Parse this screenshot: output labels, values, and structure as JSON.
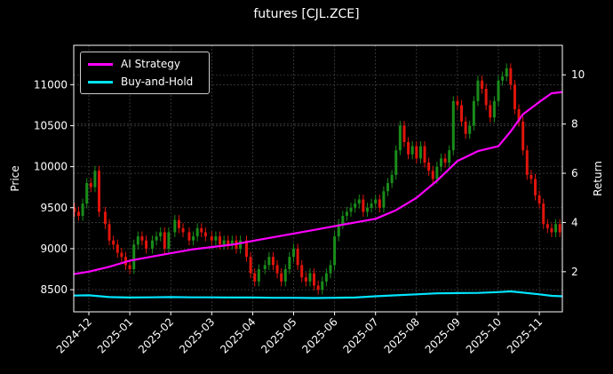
{
  "chart_data": {
    "type": "line",
    "title": "futures [CJL.ZCE]",
    "xlabel": "",
    "ylabel": "Price",
    "ylabel_right": "Return",
    "x_tick_labels": [
      "2024-12",
      "2025-01",
      "2025-02",
      "2025-03",
      "2025-04",
      "2025-05",
      "2025-06",
      "2025-07",
      "2025-08",
      "2025-09",
      "2025-10",
      "2025-11"
    ],
    "y_ticks_left": [
      8500,
      9000,
      9500,
      10000,
      10500,
      11000
    ],
    "y_ticks_right": [
      2,
      4,
      6,
      8,
      10
    ],
    "ylim_left": [
      8230,
      11480
    ],
    "ylim_right": [
      0.37,
      11.2
    ],
    "grid": true,
    "legend_position": "upper left",
    "legend": [
      "AI Strategy",
      "Buy-and-Hold"
    ],
    "colors": {
      "ai_strategy": "#ff00ff",
      "buy_and_hold": "#00e5ff",
      "up": "#1a8c1a",
      "down": "#e0150c",
      "background": "#000000",
      "axes": "#ffffff",
      "grid": "#555555"
    },
    "series": [
      {
        "name": "AI Strategy",
        "axis": "right",
        "x_month_frac": [
          -0.4,
          0,
          0.5,
          1,
          1.5,
          2,
          2.5,
          3,
          3.5,
          4,
          4.5,
          5,
          5.5,
          6,
          6.5,
          7,
          7.5,
          8,
          8.5,
          9,
          9.5,
          10,
          10.3,
          10.6,
          11,
          11.3,
          11.6
        ],
        "values": [
          1.9,
          2.0,
          2.2,
          2.45,
          2.6,
          2.75,
          2.9,
          3.0,
          3.1,
          3.25,
          3.4,
          3.55,
          3.7,
          3.85,
          4.0,
          4.15,
          4.5,
          5.0,
          5.7,
          6.5,
          6.9,
          7.1,
          7.7,
          8.4,
          8.9,
          9.25,
          9.3
        ]
      },
      {
        "name": "Buy-and-Hold",
        "axis": "right",
        "x_month_frac": [
          -0.4,
          0,
          0.5,
          1,
          1.5,
          2,
          2.5,
          3,
          3.5,
          4,
          4.5,
          5,
          5.5,
          6,
          6.5,
          7,
          7.5,
          8,
          8.5,
          9,
          9.5,
          10,
          10.3,
          10.6,
          11,
          11.3,
          11.6
        ],
        "values": [
          1.03,
          1.04,
          0.97,
          0.95,
          0.96,
          0.97,
          0.96,
          0.96,
          0.95,
          0.95,
          0.94,
          0.94,
          0.93,
          0.94,
          0.95,
          1.0,
          1.04,
          1.08,
          1.12,
          1.13,
          1.14,
          1.17,
          1.2,
          1.15,
          1.08,
          1.02,
          1.0
        ]
      }
    ],
    "price_bars": {
      "x_month_frac": [
        -0.35,
        -0.25,
        -0.15,
        -0.05,
        0.05,
        0.15,
        0.25,
        0.4,
        0.5,
        0.6,
        0.7,
        0.8,
        0.9,
        1.0,
        1.1,
        1.2,
        1.3,
        1.4,
        1.55,
        1.65,
        1.75,
        1.85,
        1.95,
        2.1,
        2.2,
        2.3,
        2.45,
        2.55,
        2.65,
        2.75,
        2.85,
        3.0,
        3.1,
        3.2,
        3.3,
        3.4,
        3.5,
        3.6,
        3.7,
        3.85,
        3.95,
        4.05,
        4.15,
        4.3,
        4.4,
        4.5,
        4.6,
        4.7,
        4.8,
        4.9,
        5.0,
        5.1,
        5.2,
        5.3,
        5.4,
        5.5,
        5.6,
        5.7,
        5.8,
        5.9,
        6.0,
        6.1,
        6.2,
        6.3,
        6.4,
        6.5,
        6.6,
        6.7,
        6.8,
        6.9,
        7.0,
        7.1,
        7.2,
        7.3,
        7.4,
        7.5,
        7.6,
        7.7,
        7.8,
        7.9,
        8.0,
        8.1,
        8.2,
        8.3,
        8.4,
        8.5,
        8.6,
        8.7,
        8.8,
        8.9,
        9.0,
        9.1,
        9.2,
        9.3,
        9.4,
        9.5,
        9.6,
        9.7,
        9.8,
        9.9,
        10.0,
        10.1,
        10.2,
        10.3,
        10.4,
        10.5,
        10.6,
        10.7,
        10.8,
        10.9,
        11.0,
        11.1,
        11.2,
        11.3,
        11.4,
        11.5,
        11.6
      ],
      "open": [
        9500,
        9450,
        9400,
        9550,
        9800,
        9750,
        9950,
        9450,
        9300,
        9100,
        9050,
        8950,
        8900,
        8800,
        8750,
        9050,
        9150,
        9100,
        9000,
        9100,
        9150,
        9200,
        9000,
        9200,
        9350,
        9250,
        9200,
        9100,
        9150,
        9250,
        9200,
        9150,
        9100,
        9150,
        9050,
        9100,
        9050,
        9100,
        9000,
        9100,
        8900,
        8700,
        8600,
        8750,
        8800,
        8900,
        8800,
        8700,
        8600,
        8750,
        8900,
        9000,
        8800,
        8650,
        8600,
        8700,
        8550,
        8500,
        8600,
        8700,
        8800,
        9150,
        9300,
        9400,
        9450,
        9500,
        9550,
        9600,
        9450,
        9500,
        9550,
        9600,
        9500,
        9700,
        9800,
        9900,
        10200,
        10500,
        10300,
        10150,
        10250,
        10100,
        10250,
        10050,
        9950,
        9850,
        10000,
        10100,
        10050,
        10200,
        10800,
        10750,
        10550,
        10400,
        10500,
        10800,
        11050,
        10950,
        10750,
        10600,
        10800,
        11050,
        11100,
        11200,
        11000,
        10700,
        10550,
        10200,
        9900,
        9850,
        9650,
        9550,
        9300,
        9250,
        9200,
        9300,
        9200
      ],
      "close": [
        9450,
        9400,
        9550,
        9800,
        9750,
        9950,
        9450,
        9300,
        9100,
        9050,
        8950,
        8900,
        8800,
        8750,
        9050,
        9150,
        9100,
        9000,
        9100,
        9150,
        9200,
        9000,
        9200,
        9350,
        9250,
        9200,
        9100,
        9150,
        9250,
        9200,
        9150,
        9100,
        9150,
        9050,
        9100,
        9050,
        9100,
        9000,
        9100,
        8900,
        8700,
        8600,
        8750,
        8800,
        8900,
        8800,
        8700,
        8600,
        8750,
        8900,
        9000,
        8800,
        8650,
        8600,
        8700,
        8550,
        8500,
        8600,
        8700,
        8800,
        9150,
        9300,
        9400,
        9450,
        9500,
        9550,
        9600,
        9450,
        9500,
        9550,
        9600,
        9500,
        9700,
        9800,
        9900,
        10200,
        10500,
        10300,
        10150,
        10250,
        10100,
        10250,
        10050,
        9950,
        9850,
        10000,
        10100,
        10050,
        10200,
        10800,
        10750,
        10550,
        10400,
        10500,
        10800,
        11050,
        10950,
        10750,
        10600,
        10800,
        11050,
        11100,
        11200,
        11000,
        10700,
        10550,
        10200,
        9900,
        9850,
        9650,
        9550,
        9300,
        9250,
        9200,
        9300,
        9200,
        9250
      ]
    }
  }
}
